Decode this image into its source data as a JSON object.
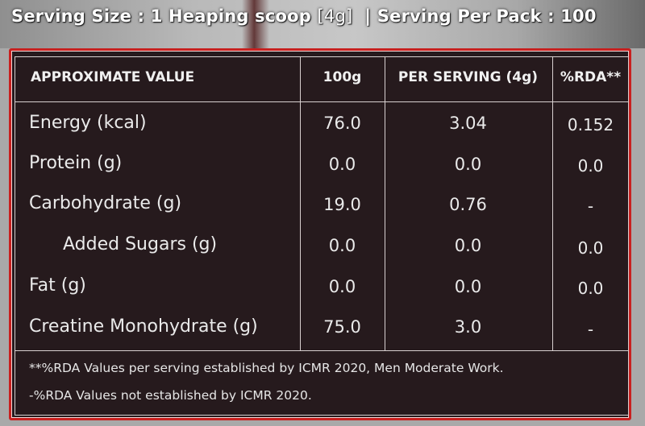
{
  "header": {
    "serving_size_prefix": "Serving Size : 1 Heaping scoop ",
    "serving_size_unit": "[4g]",
    "separator": "|",
    "serving_per_pack": "Serving Per Pack : 100"
  },
  "table": {
    "columns": [
      "APPROXIMATE VALUE",
      "100g",
      "PER SERVING (4g)",
      "%RDA**"
    ],
    "rows": [
      {
        "label": "Energy (kcal)",
        "per_100g": "76.0",
        "per_serving": "3.04",
        "rda": "0.152"
      },
      {
        "label": "Protein (g)",
        "per_100g": "0.0",
        "per_serving": "0.0",
        "rda": "0.0"
      },
      {
        "label": "Carbohydrate (g)",
        "per_100g": "19.0",
        "per_serving": "0.76",
        "rda": "-"
      },
      {
        "label": "Added Sugars (g)",
        "per_100g": "0.0",
        "per_serving": "0.0",
        "rda": "0.0"
      },
      {
        "label": "Fat (g)",
        "per_100g": "0.0",
        "per_serving": "0.0",
        "rda": "0.0"
      },
      {
        "label": "Creatine Monohydrate (g)",
        "per_100g": "75.0",
        "per_serving": "3.0",
        "rda": "-"
      }
    ]
  },
  "footnotes": [
    "**%RDA Values per serving established by ICMR 2020, Men Moderate Work.",
    "-%RDA Values not established by ICMR 2020."
  ],
  "colors": {
    "panel_bg": "#261a1d",
    "border_red": "#c8201f",
    "text": "#eaeaea"
  }
}
